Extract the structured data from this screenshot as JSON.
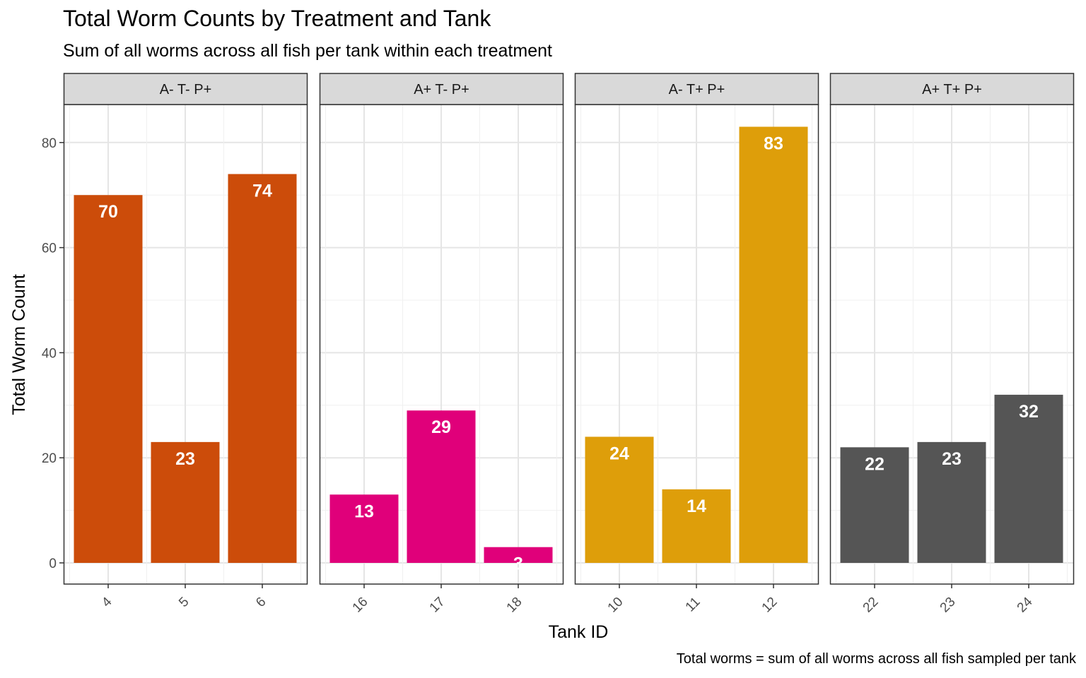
{
  "chart_data": {
    "type": "bar",
    "title": "Total Worm Counts by Treatment and Tank",
    "subtitle": "Sum of all worms across all fish per tank within each treatment",
    "caption": "Total worms = sum of all worms across all fish sampled per tank",
    "xlabel": "Tank ID",
    "ylabel": "Total Worm Count",
    "ylim": [
      0,
      88
    ],
    "yticks": [
      0,
      20,
      40,
      60,
      80
    ],
    "grid": true,
    "legend": "none",
    "facets": [
      {
        "label": "A- T- P+",
        "color": "#CC4C0A",
        "categories": [
          "4",
          "5",
          "6"
        ],
        "values": [
          70,
          23,
          74
        ]
      },
      {
        "label": "A+ T- P+",
        "color": "#E0007A",
        "categories": [
          "16",
          "17",
          "18"
        ],
        "values": [
          13,
          29,
          3
        ]
      },
      {
        "label": "A- T+ P+",
        "color": "#DE9E0A",
        "categories": [
          "10",
          "11",
          "12"
        ],
        "values": [
          24,
          14,
          83
        ]
      },
      {
        "label": "A+ T+ P+",
        "color": "#555555",
        "categories": [
          "22",
          "23",
          "24"
        ],
        "values": [
          22,
          23,
          32
        ]
      }
    ]
  }
}
